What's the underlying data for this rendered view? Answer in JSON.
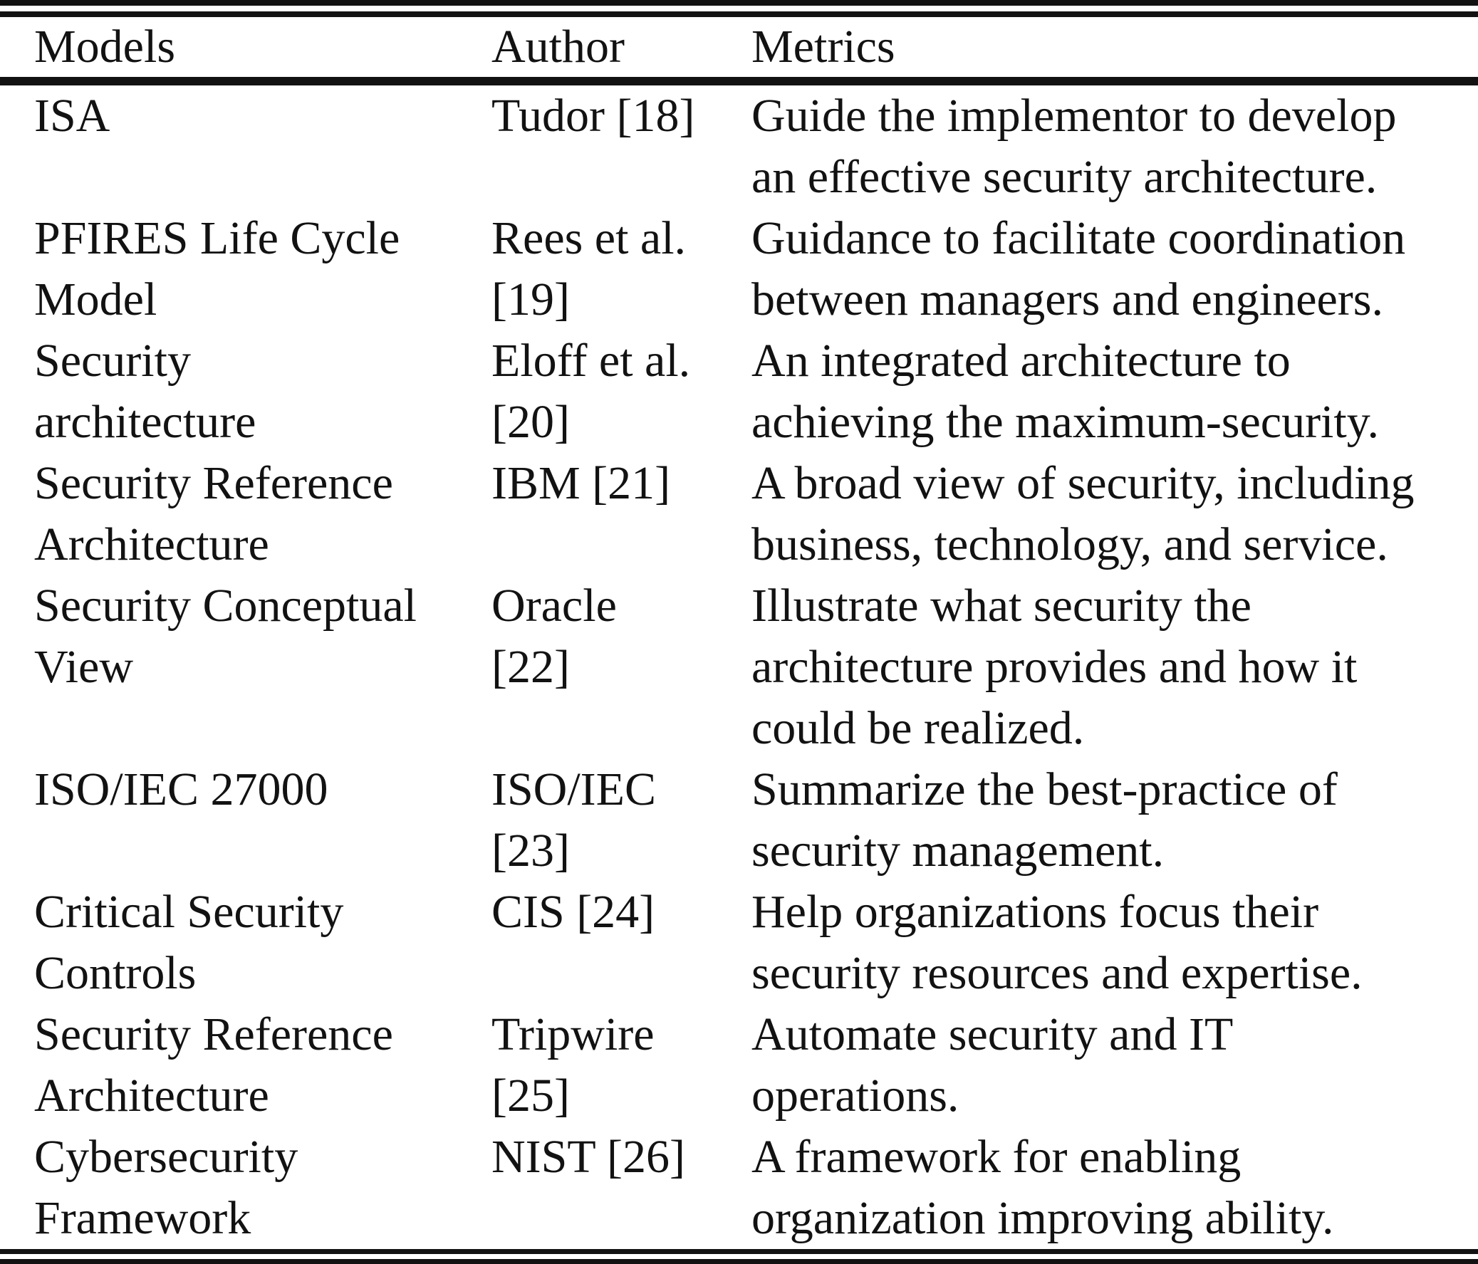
{
  "table": {
    "columns": {
      "models": "Models",
      "author": "Author",
      "metrics": "Metrics"
    },
    "rows": [
      {
        "model": [
          "ISA"
        ],
        "author": [
          "Tudor [18]"
        ],
        "metric": [
          "Guide the implementor to develop",
          "an effective security architecture."
        ]
      },
      {
        "model": [
          "PFIRES Life Cycle",
          "Model"
        ],
        "author": [
          "Rees et al.",
          "[19]"
        ],
        "metric": [
          "Guidance to facilitate coordination",
          "between managers and engineers."
        ]
      },
      {
        "model": [
          "Security",
          "architecture"
        ],
        "author": [
          "Eloff et al.",
          "[20]"
        ],
        "metric": [
          "An integrated architecture to",
          "achieving the maximum-security."
        ]
      },
      {
        "model": [
          "Security Reference",
          "Architecture"
        ],
        "author": [
          "IBM [21]"
        ],
        "metric": [
          "A broad view of security, including",
          "business, technology, and service."
        ]
      },
      {
        "model": [
          "Security Conceptual",
          "View"
        ],
        "author": [
          "Oracle",
          "[22]"
        ],
        "metric": [
          "Illustrate what security the",
          "architecture provides and how it",
          "could be realized."
        ]
      },
      {
        "model": [
          "ISO/IEC 27000"
        ],
        "author": [
          "ISO/IEC",
          "[23]"
        ],
        "metric": [
          "Summarize the best-practice of",
          "security management."
        ]
      },
      {
        "model": [
          "Critical Security",
          "Controls"
        ],
        "author": [
          "CIS [24]"
        ],
        "metric": [
          "Help organizations focus their",
          "security resources and expertise."
        ]
      },
      {
        "model": [
          "Security Reference",
          "Architecture"
        ],
        "author": [
          "Tripwire",
          "[25]"
        ],
        "metric": [
          "Automate security and IT",
          "operations."
        ]
      },
      {
        "model": [
          "Cybersecurity",
          "Framework"
        ],
        "author": [
          "NIST [26]"
        ],
        "metric": [
          "A framework for enabling",
          "organization improving ability."
        ]
      }
    ],
    "text_color": "#121212",
    "background_color": "#ffffff"
  }
}
